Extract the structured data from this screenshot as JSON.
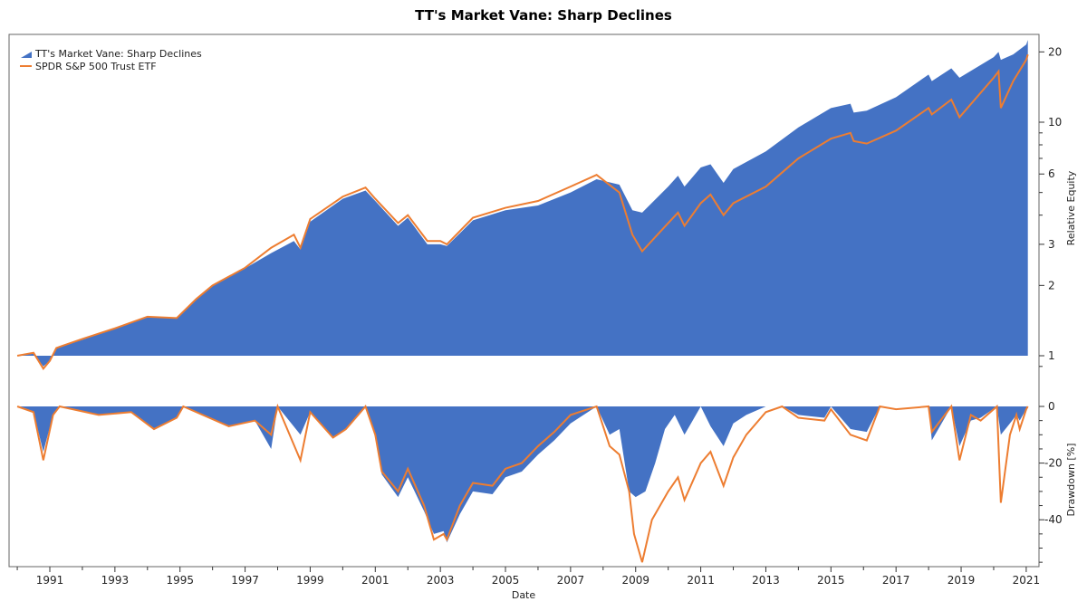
{
  "chart_data": [
    {
      "type": "area",
      "title": "TT's Market Vane: Sharp Declines",
      "xlabel": "Date",
      "ylabel": "Relative Equity",
      "yscale": "log",
      "ylim": [
        0.82,
        23
      ],
      "yticks": [
        1,
        2,
        3,
        6,
        10,
        20
      ],
      "yminor": [
        0.9,
        4,
        5,
        7,
        8,
        9
      ],
      "legend": "top-left",
      "series": [
        {
          "name": "TT's Market Vane: Sharp Declines",
          "kind": "area",
          "color": "#4472C4",
          "x": [
            1990.0,
            1990.5,
            1990.8,
            1991.0,
            1991.2,
            1992.0,
            1993.0,
            1994.0,
            1994.9,
            1995.5,
            1996.0,
            1997.0,
            1997.8,
            1998.5,
            1998.7,
            1999.0,
            2000.0,
            2000.7,
            2001.0,
            2001.7,
            2002.0,
            2002.6,
            2003.0,
            2003.2,
            2004.0,
            2005.0,
            2006.0,
            2007.0,
            2007.8,
            2008.5,
            2008.9,
            2009.2,
            2010.0,
            2010.3,
            2010.5,
            2011.0,
            2011.3,
            2011.7,
            2012.0,
            2013.0,
            2014.0,
            2015.0,
            2015.6,
            2015.7,
            2016.1,
            2017.0,
            2018.0,
            2018.1,
            2018.7,
            2018.95,
            2020.0,
            2020.15,
            2020.22,
            2020.6,
            2021.0,
            2021.05
          ],
          "y": [
            1.0,
            1.02,
            0.9,
            0.95,
            1.08,
            1.17,
            1.31,
            1.46,
            1.45,
            1.75,
            2.0,
            2.37,
            2.75,
            3.1,
            2.85,
            3.75,
            4.7,
            5.1,
            4.6,
            3.6,
            3.9,
            3.0,
            3.0,
            2.95,
            3.8,
            4.2,
            4.4,
            5.0,
            5.7,
            5.4,
            4.2,
            4.1,
            5.3,
            5.9,
            5.3,
            6.4,
            6.6,
            5.5,
            6.3,
            7.5,
            9.5,
            11.5,
            12.0,
            11.0,
            11.2,
            12.8,
            16.0,
            15.0,
            17.0,
            15.5,
            19.0,
            20.0,
            18.5,
            19.5,
            21.5,
            22.5
          ]
        },
        {
          "name": "SPDR S&P 500 Trust ETF",
          "kind": "line",
          "color": "#ED7D31",
          "x": [
            1990.0,
            1990.5,
            1990.8,
            1991.0,
            1991.2,
            1992.0,
            1993.0,
            1994.0,
            1994.9,
            1995.5,
            1996.0,
            1997.0,
            1997.8,
            1998.5,
            1998.7,
            1999.0,
            2000.0,
            2000.7,
            2001.0,
            2001.7,
            2002.0,
            2002.6,
            2003.0,
            2003.2,
            2004.0,
            2005.0,
            2006.0,
            2007.0,
            2007.8,
            2008.5,
            2008.9,
            2009.2,
            2010.0,
            2010.3,
            2010.5,
            2011.0,
            2011.3,
            2011.7,
            2012.0,
            2013.0,
            2014.0,
            2015.0,
            2015.6,
            2015.7,
            2016.1,
            2017.0,
            2018.0,
            2018.1,
            2018.7,
            2018.95,
            2020.0,
            2020.15,
            2020.22,
            2020.6,
            2021.0,
            2021.05
          ],
          "y": [
            1.0,
            1.03,
            0.88,
            0.95,
            1.08,
            1.18,
            1.31,
            1.47,
            1.45,
            1.75,
            2.0,
            2.38,
            2.9,
            3.3,
            2.9,
            3.85,
            4.8,
            5.25,
            4.7,
            3.7,
            4.0,
            3.1,
            3.1,
            3.0,
            3.9,
            4.3,
            4.6,
            5.3,
            5.95,
            5.0,
            3.3,
            2.8,
            3.7,
            4.1,
            3.6,
            4.5,
            4.9,
            4.0,
            4.5,
            5.3,
            7.0,
            8.5,
            9.0,
            8.3,
            8.1,
            9.2,
            11.5,
            10.8,
            12.5,
            10.5,
            15.5,
            16.5,
            11.5,
            15.0,
            18.5,
            19.5
          ]
        }
      ],
      "legend_entries": [
        "TT's Market Vane: Sharp Declines",
        "SPDR S&P 500 Trust ETF"
      ]
    },
    {
      "type": "area",
      "xlabel": "Date",
      "ylabel": "Drawdown [%]",
      "ylim": [
        -55,
        0
      ],
      "yticks": [
        0,
        -20,
        -40
      ],
      "yminor_step": 5,
      "xlim": [
        1989.97,
        2021.3
      ],
      "xticks": [
        1991,
        1993,
        1995,
        1997,
        1999,
        2001,
        2003,
        2005,
        2007,
        2009,
        2011,
        2013,
        2015,
        2017,
        2019,
        2021
      ],
      "series": [
        {
          "name": "TT's Market Vane: Sharp Declines",
          "kind": "area",
          "color": "#4472C4",
          "x": [
            1990.0,
            1990.5,
            1990.8,
            1991.1,
            1991.3,
            1992.5,
            1993.5,
            1994.2,
            1994.9,
            1995.1,
            1996.5,
            1997.3,
            1997.8,
            1998.0,
            1998.7,
            1999.0,
            1999.7,
            2000.1,
            2000.7,
            2001.0,
            2001.2,
            2001.7,
            2002.0,
            2002.5,
            2002.8,
            2003.1,
            2003.2,
            2003.6,
            2004.0,
            2004.6,
            2005.0,
            2005.5,
            2006.0,
            2006.5,
            2007.0,
            2007.8,
            2008.2,
            2008.5,
            2008.8,
            2009.0,
            2009.3,
            2009.6,
            2009.9,
            2010.2,
            2010.5,
            2011.0,
            2011.3,
            2011.7,
            2012.0,
            2012.4,
            2013.0,
            2013.5,
            2014.0,
            2014.8,
            2015.0,
            2015.6,
            2016.1,
            2016.5,
            2017.0,
            2018.0,
            2018.1,
            2018.7,
            2018.95,
            2019.3,
            2019.6,
            2020.1,
            2020.22,
            2020.5,
            2020.7,
            2020.8,
            2021.0,
            2021.05
          ],
          "y": [
            0,
            -2,
            -16,
            -3,
            0,
            -3,
            -2,
            -8,
            -4,
            0,
            -7,
            -5,
            -15,
            0,
            -10,
            -2,
            -11,
            -8,
            0,
            -11,
            -24,
            -32,
            -25,
            -37,
            -45,
            -44,
            -48,
            -38,
            -30,
            -31,
            -25,
            -23,
            -17,
            -12,
            -6,
            0,
            -10,
            -8,
            -30,
            -32,
            -30,
            -20,
            -8,
            -3,
            -10,
            0,
            -7,
            -14,
            -6,
            -3,
            0,
            0,
            -3,
            -4,
            0,
            -8,
            -9,
            0,
            0,
            0,
            -12,
            0,
            -14,
            -5,
            -4,
            0,
            -10,
            -6,
            -3,
            -5,
            -1,
            0
          ]
        },
        {
          "name": "SPDR S&P 500 Trust ETF",
          "kind": "line",
          "color": "#ED7D31",
          "x": [
            1990.0,
            1990.5,
            1990.8,
            1991.1,
            1991.3,
            1992.5,
            1993.5,
            1994.2,
            1994.9,
            1995.1,
            1996.5,
            1997.3,
            1997.8,
            1998.0,
            1998.7,
            1999.0,
            1999.7,
            2000.1,
            2000.7,
            2001.0,
            2001.2,
            2001.7,
            2002.0,
            2002.5,
            2002.8,
            2003.1,
            2003.2,
            2003.6,
            2004.0,
            2004.6,
            2005.0,
            2005.5,
            2006.0,
            2006.5,
            2007.0,
            2007.8,
            2008.2,
            2008.5,
            2008.8,
            2008.95,
            2009.2,
            2009.5,
            2010.0,
            2010.3,
            2010.5,
            2011.0,
            2011.3,
            2011.7,
            2012.0,
            2012.4,
            2013.0,
            2013.5,
            2014.0,
            2014.8,
            2015.0,
            2015.6,
            2016.1,
            2016.5,
            2017.0,
            2018.0,
            2018.1,
            2018.7,
            2018.95,
            2019.3,
            2019.6,
            2020.1,
            2020.22,
            2020.5,
            2020.7,
            2020.8,
            2021.0,
            2021.05
          ],
          "y": [
            0,
            -2,
            -19,
            -3,
            0,
            -3,
            -2,
            -8,
            -4,
            0,
            -7,
            -5,
            -10,
            0,
            -19,
            -2,
            -11,
            -8,
            0,
            -10,
            -23,
            -30,
            -22,
            -35,
            -47,
            -45,
            -47,
            -35,
            -27,
            -28,
            -22,
            -20,
            -14,
            -9,
            -3,
            0,
            -14,
            -17,
            -30,
            -45,
            -55,
            -40,
            -30,
            -25,
            -33,
            -20,
            -16,
            -28,
            -18,
            -10,
            -2,
            0,
            -4,
            -5,
            -1,
            -10,
            -12,
            0,
            -1,
            0,
            -9,
            0,
            -19,
            -3,
            -5,
            0,
            -34,
            -10,
            -3,
            -8,
            -1,
            0
          ]
        }
      ]
    }
  ]
}
